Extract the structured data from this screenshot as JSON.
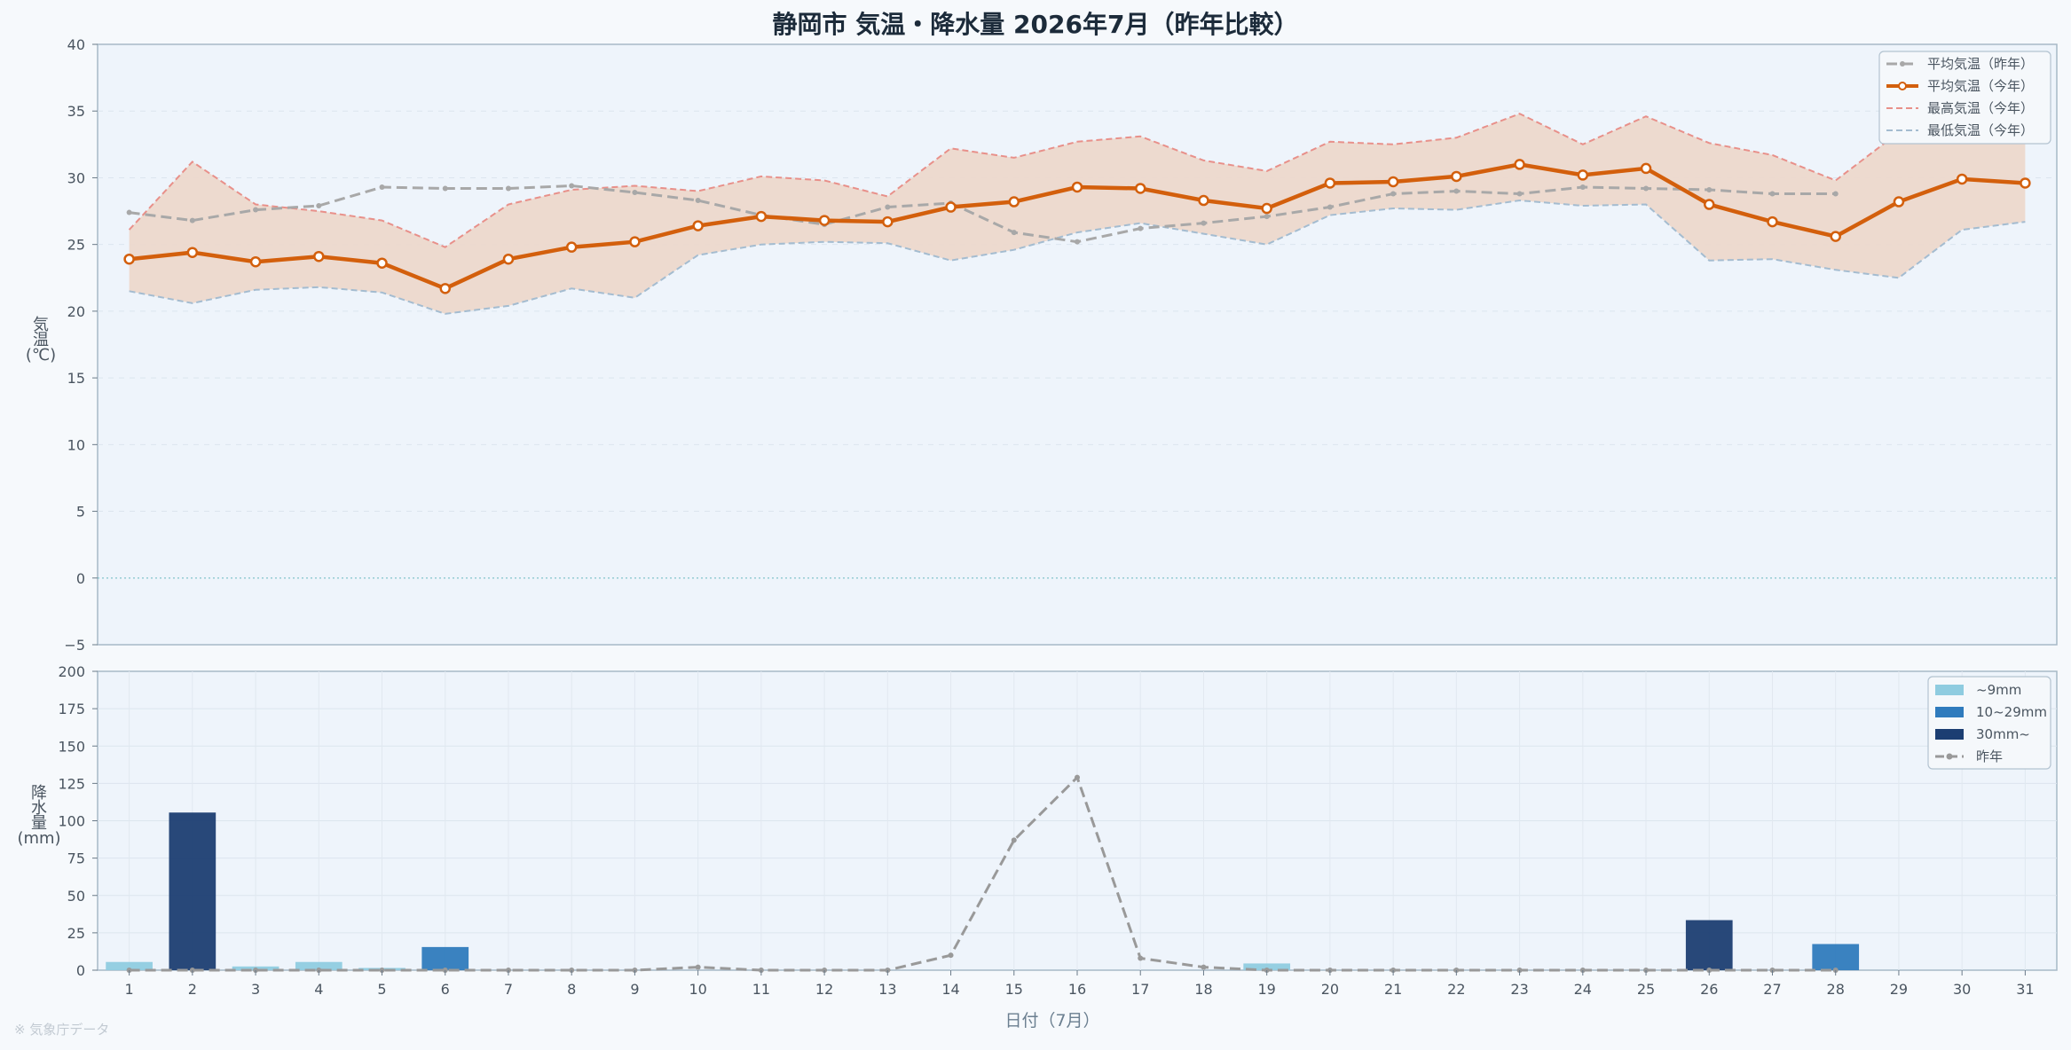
{
  "title": "静岡市 気温・降水量 2026年7月（昨年比較）",
  "source_note": "※ 気象庁データ",
  "colors": {
    "avg_this": "#d35f0c",
    "avg_last": "#a8a8a8",
    "max_this": "#e8908a",
    "min_this": "#a4bcd0",
    "band": "#ecd8cc",
    "rain_light": "#8fcce0",
    "rain_mid": "#2f7bbd",
    "rain_heavy": "#1c3e72",
    "rain_last": "#999999"
  },
  "chart_data": [
    {
      "type": "line",
      "ylabel": "気温(℃)",
      "ylim": [
        -5,
        40
      ],
      "yticks": [
        "−5",
        "0",
        "5",
        "10",
        "15",
        "20",
        "25",
        "30",
        "35",
        "40"
      ],
      "x": [
        1,
        2,
        3,
        4,
        5,
        6,
        7,
        8,
        9,
        10,
        11,
        12,
        13,
        14,
        15,
        16,
        17,
        18,
        19,
        20,
        21,
        22,
        23,
        24,
        25,
        26,
        27,
        28,
        29,
        30,
        31
      ],
      "legend_position": "top-right",
      "legend": [
        "平均気温（昨年）",
        "平均気温（今年）",
        "最高気温（今年）",
        "最低気温（今年）"
      ],
      "series": [
        {
          "name": "平均気温（昨年）",
          "values": [
            27.4,
            26.8,
            27.6,
            27.9,
            29.3,
            29.2,
            29.2,
            29.4,
            28.9,
            28.3,
            27.2,
            26.5,
            27.8,
            28.1,
            25.9,
            25.2,
            26.2,
            26.6,
            27.1,
            27.8,
            28.8,
            29.0,
            28.8,
            29.3,
            29.2,
            29.1,
            28.8,
            28.8,
            null,
            null,
            null
          ]
        },
        {
          "name": "平均気温（今年）",
          "values": [
            23.9,
            24.4,
            23.7,
            24.1,
            23.6,
            21.7,
            23.9,
            24.8,
            25.2,
            26.4,
            27.1,
            26.8,
            26.7,
            27.8,
            28.2,
            29.3,
            29.2,
            28.3,
            27.7,
            29.6,
            29.7,
            30.1,
            31.0,
            30.2,
            30.7,
            28.0,
            26.7,
            25.6,
            28.2,
            29.9,
            29.6
          ]
        },
        {
          "name": "最高気温（今年）",
          "values": [
            26.1,
            31.2,
            28.0,
            27.5,
            26.8,
            24.8,
            28.0,
            29.1,
            29.4,
            29.0,
            30.1,
            29.8,
            28.6,
            32.2,
            31.5,
            32.7,
            33.1,
            31.3,
            30.5,
            32.7,
            32.5,
            33.0,
            34.8,
            32.5,
            34.6,
            32.6,
            31.7,
            29.8,
            33.4,
            33.4,
            33.3
          ]
        },
        {
          "name": "最低気温（今年）",
          "values": [
            21.5,
            20.6,
            21.6,
            21.8,
            21.4,
            19.8,
            20.4,
            21.7,
            21.0,
            24.2,
            25.0,
            25.2,
            25.1,
            23.8,
            24.6,
            25.9,
            26.6,
            25.8,
            25.0,
            27.2,
            27.7,
            27.6,
            28.3,
            27.9,
            28.0,
            23.8,
            23.9,
            23.1,
            22.5,
            26.1,
            26.7
          ]
        }
      ]
    },
    {
      "type": "bar",
      "ylabel": "降水量(mm)",
      "xlabel": "日付（7月）",
      "ylim": [
        0,
        200
      ],
      "yticks": [
        "0",
        "25",
        "50",
        "75",
        "100",
        "125",
        "150",
        "175",
        "200"
      ],
      "categories": [
        "1",
        "2",
        "3",
        "4",
        "5",
        "6",
        "7",
        "8",
        "9",
        "10",
        "11",
        "12",
        "13",
        "14",
        "15",
        "16",
        "17",
        "18",
        "19",
        "20",
        "21",
        "22",
        "23",
        "24",
        "25",
        "26",
        "27",
        "28",
        "29",
        "30",
        "31"
      ],
      "legend_position": "top-right",
      "legend": [
        "~9mm",
        "10~29mm",
        "30mm~",
        "昨年"
      ],
      "series": [
        {
          "name": "今年",
          "values": [
            5.5,
            105.5,
            2.5,
            5.5,
            1.5,
            15.5,
            0,
            0,
            0,
            0,
            0,
            0,
            0,
            0,
            0,
            0,
            0,
            0,
            4.5,
            0,
            0,
            0,
            0,
            0,
            0,
            33.5,
            0,
            17.5,
            0,
            0,
            0
          ]
        },
        {
          "name": "昨年",
          "values": [
            0,
            0,
            0,
            0,
            0,
            0,
            0,
            0,
            0,
            2,
            0,
            0,
            0,
            10,
            87,
            129,
            8,
            2,
            0,
            0,
            0,
            0,
            0,
            0,
            0,
            0,
            0,
            0,
            null,
            null,
            null
          ]
        }
      ]
    }
  ]
}
